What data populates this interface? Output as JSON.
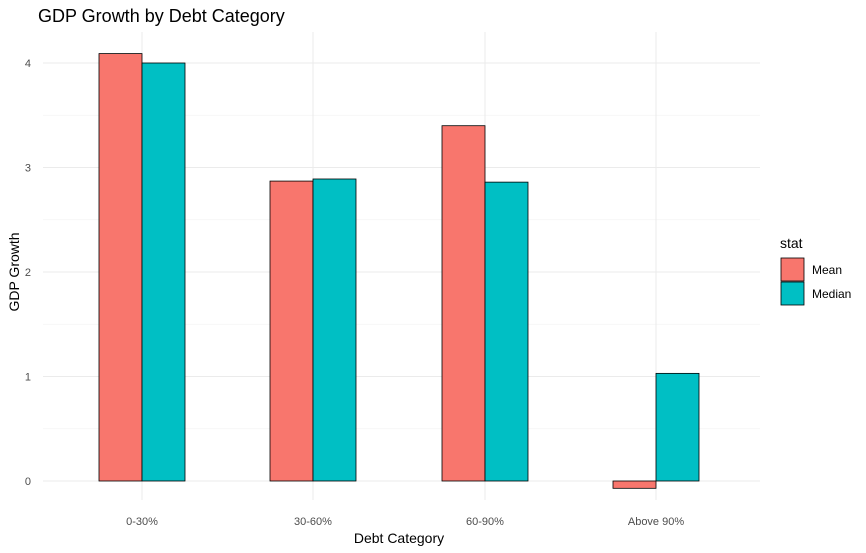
{
  "chart_data": {
    "type": "bar",
    "title": "GDP Growth by Debt Category",
    "xlabel": "Debt Category",
    "ylabel": "GDP Growth",
    "categories": [
      "0-30%",
      "30-60%",
      "60-90%",
      "Above 90%"
    ],
    "series": [
      {
        "name": "Mean",
        "color": "#F8766D",
        "values": [
          4.09,
          2.87,
          3.4,
          -0.07
        ]
      },
      {
        "name": "Median",
        "color": "#00BFC4",
        "values": [
          4.0,
          2.89,
          2.86,
          1.03
        ]
      }
    ],
    "ylim": [
      -0.2,
      4.3
    ],
    "yticks": [
      "0",
      "1",
      "2",
      "3",
      "4"
    ],
    "grid": true,
    "legend": {
      "title": "stat",
      "position": "right"
    }
  }
}
